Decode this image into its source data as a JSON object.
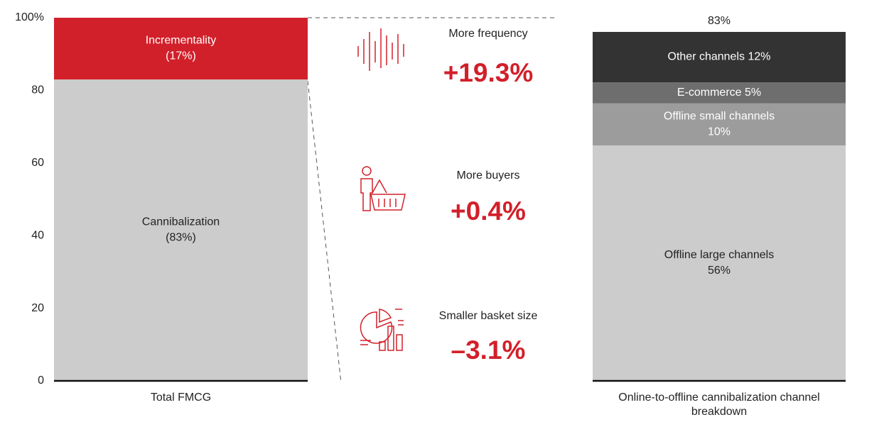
{
  "chart_data": [
    {
      "type": "bar",
      "stacked": true,
      "categories": [
        "Total FMCG"
      ],
      "series": [
        {
          "name": "Cannibalization",
          "color": "#cccccc",
          "values": [
            83
          ],
          "value_labels": [
            "(83%)"
          ]
        },
        {
          "name": "Incrementality",
          "color": "#d2202a",
          "values": [
            17
          ],
          "value_labels": [
            "(17%)"
          ]
        }
      ],
      "ylim": [
        0,
        100
      ],
      "yticks": [
        0,
        20,
        40,
        60,
        80,
        {
          "value": 100,
          "label": "100%"
        }
      ]
    },
    {
      "type": "bar",
      "stacked": true,
      "categories": [
        "Online-to-offline cannibalization channel breakdown"
      ],
      "total_label": "83%",
      "series": [
        {
          "name": "Offline large channels",
          "color": "#cccccc",
          "values": [
            56
          ],
          "value_labels": [
            "56%"
          ]
        },
        {
          "name": "Offline small channels",
          "color": "#9c9c9c",
          "values": [
            10
          ],
          "value_labels": [
            "10%"
          ]
        },
        {
          "name": "E-commerce",
          "color": "#6e6e6e",
          "values": [
            5
          ],
          "value_labels": [
            "5%"
          ]
        },
        {
          "name": "Other channels",
          "color": "#333333",
          "values": [
            12
          ],
          "value_labels": [
            "12%"
          ]
        }
      ]
    }
  ],
  "drivers": [
    {
      "label": "More frequency",
      "value": "+19.3%"
    },
    {
      "label": "More buyers",
      "value": "+0.4%"
    },
    {
      "label": "Smaller basket size",
      "value": "–3.1%"
    }
  ]
}
